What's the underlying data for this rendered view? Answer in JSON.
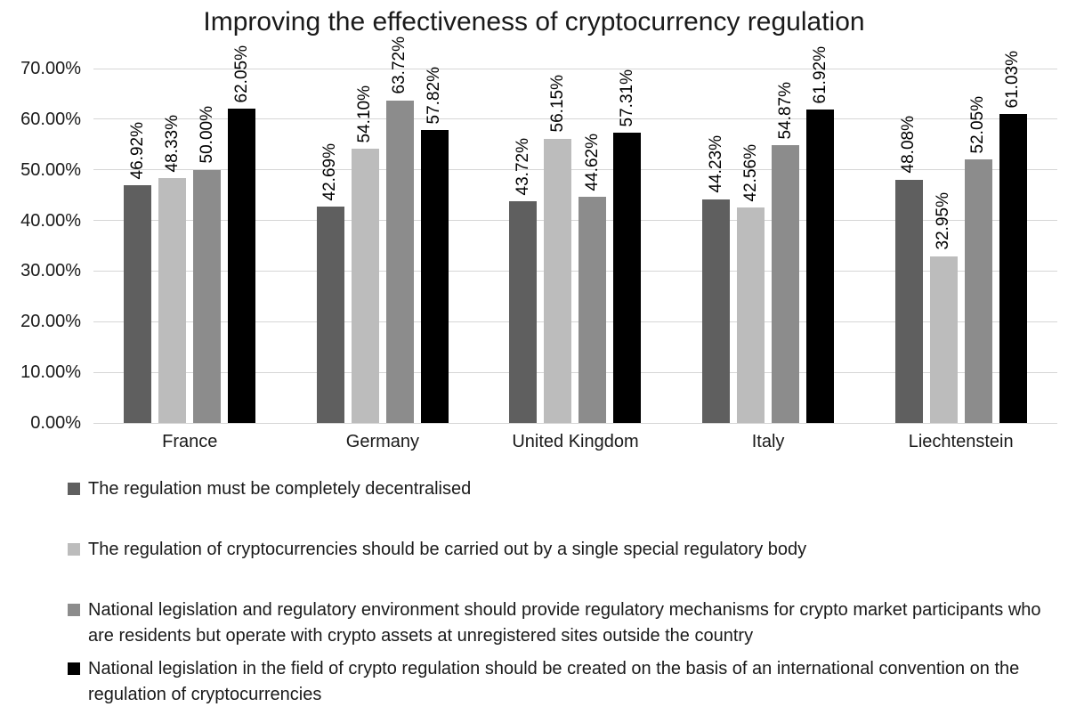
{
  "chart_data": {
    "type": "bar",
    "title": "Improving the effectiveness of cryptocurrency regulation",
    "categories": [
      "France",
      "Germany",
      "United Kingdom",
      "Italy",
      "Liechtenstein"
    ],
    "series": [
      {
        "name": "The regulation must be completely decentralised",
        "color": "#5f5f5f",
        "values": [
          46.92,
          42.69,
          43.72,
          44.23,
          48.08
        ],
        "labels": [
          "46.92%",
          "42.69%",
          "43.72%",
          "44.23%",
          "48.08%"
        ]
      },
      {
        "name": "The regulation of cryptocurrencies should be carried out by a single special regulatory body",
        "color": "#bcbcbc",
        "values": [
          48.33,
          54.1,
          56.15,
          42.56,
          32.95
        ],
        "labels": [
          "48.33%",
          "54.10%",
          "56.15%",
          "42.56%",
          "32.95%"
        ]
      },
      {
        "name": "National legislation and regulatory environment should provide regulatory mechanisms for crypto market participants who are residents but operate with crypto assets at unregistered sites outside the country",
        "color": "#8c8c8c",
        "values": [
          50.0,
          63.72,
          44.62,
          54.87,
          52.05
        ],
        "labels": [
          "50.00%",
          "63.72%",
          "44.62%",
          "54.87%",
          "52.05%"
        ]
      },
      {
        "name": "National legislation in the field of crypto regulation should be created on the basis of an international convention on the regulation of cryptocurrencies",
        "color": "#000000",
        "values": [
          62.05,
          57.82,
          57.31,
          61.92,
          61.03
        ],
        "labels": [
          "62.05%",
          "57.82%",
          "57.31%",
          "61.92%",
          "61.03%"
        ]
      }
    ],
    "y_axis": {
      "min": 0,
      "max": 70,
      "tick_step": 10,
      "tick_labels": [
        "0.00%",
        "10.00%",
        "20.00%",
        "30.00%",
        "40.00%",
        "50.00%",
        "60.00%",
        "70.00%"
      ]
    },
    "grid": true,
    "legend_position": "bottom",
    "data_label_rotation": 90,
    "gridline_color": "#d6d6d6"
  }
}
